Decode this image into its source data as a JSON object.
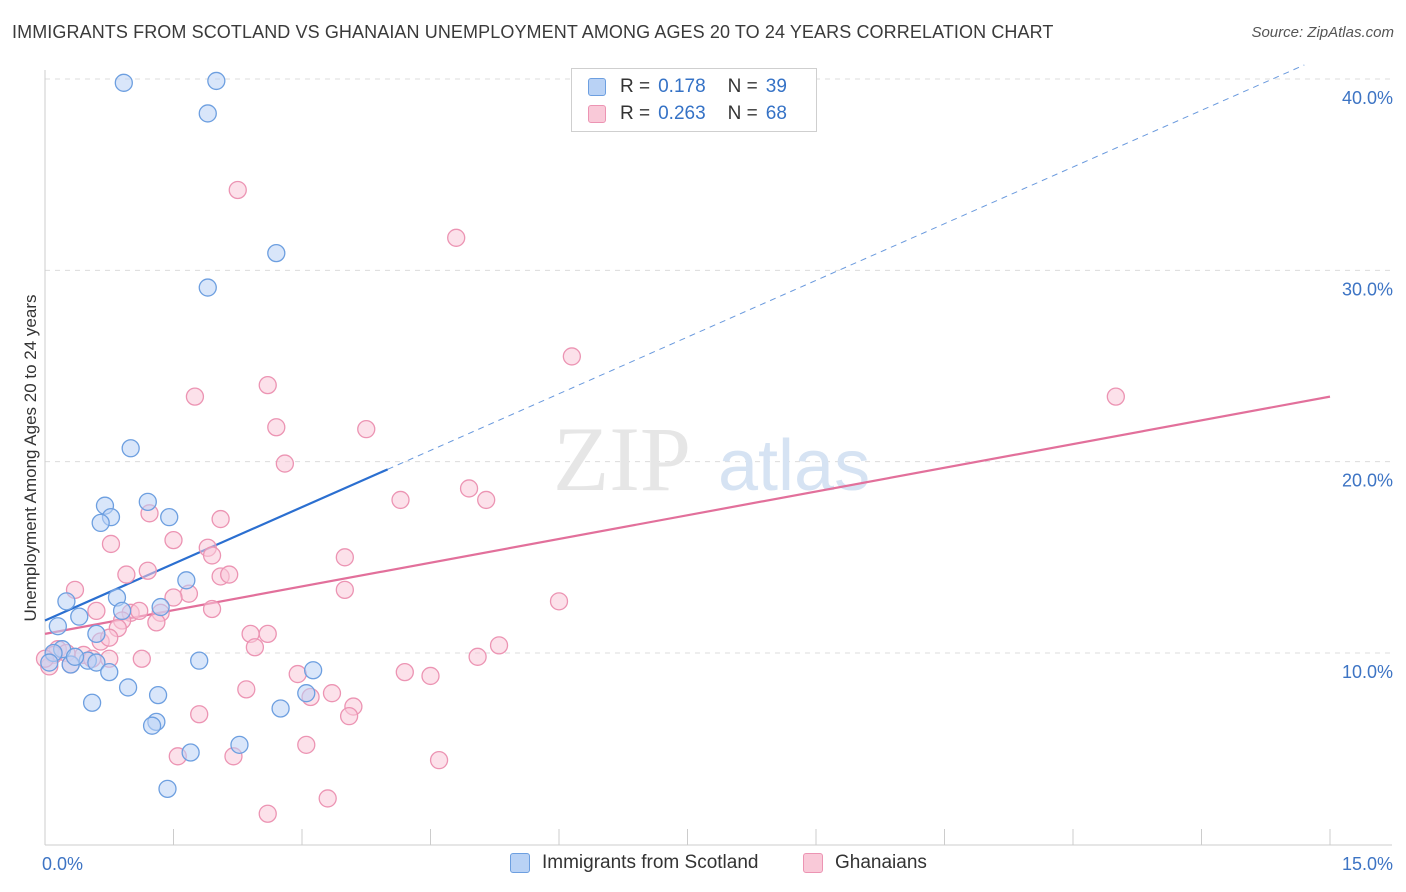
{
  "header": {
    "title": "IMMIGRANTS FROM SCOTLAND VS GHANAIAN UNEMPLOYMENT AMONG AGES 20 TO 24 YEARS CORRELATION CHART",
    "source": "Source: ZipAtlas.com"
  },
  "watermark": {
    "zip": "ZIP",
    "atlas": "atlas"
  },
  "legend": {
    "r_label": "R =",
    "n_label": "N =",
    "series": [
      {
        "r": "0.178",
        "n": "39"
      },
      {
        "r": "0.263",
        "n": "68"
      }
    ]
  },
  "colors": {
    "blue_fill": "#b9d2f5",
    "blue_stroke": "#6d9fe0",
    "blue_line": "#2b6fd0",
    "pink_fill": "#f9c9d8",
    "pink_stroke": "#ec94b3",
    "pink_line": "#e2709b",
    "tick_text": "#3d74c4",
    "grid": "#dcdcdc"
  },
  "chart_data": {
    "type": "scatter",
    "title": "IMMIGRANTS FROM SCOTLAND VS GHANAIAN UNEMPLOYMENT AMONG AGES 20 TO 24 YEARS CORRELATION CHART",
    "xlabel": "",
    "ylabel": "Unemployment Among Ages 20 to 24 years",
    "xlim": [
      0,
      15
    ],
    "ylim": [
      0,
      40
    ],
    "x_tick_labels": [
      {
        "value": 0,
        "label": "0.0%"
      },
      {
        "value": 15,
        "label": "15.0%"
      }
    ],
    "y_ticks": [
      {
        "value": 10,
        "label": "10.0%"
      },
      {
        "value": 20,
        "label": "20.0%"
      },
      {
        "value": 30,
        "label": "30.0%"
      },
      {
        "value": 40,
        "label": "40.0%"
      }
    ],
    "series": [
      {
        "name": "Immigrants from Scotland",
        "r": 0.178,
        "n": 39,
        "trend": {
          "x0": 0,
          "y0": 11.7,
          "x1": 4.0,
          "y1": 19.6,
          "dash_to_x": 14.7
        },
        "points": [
          [
            0.92,
            39.8
          ],
          [
            2.0,
            39.9
          ],
          [
            1.9,
            38.2
          ],
          [
            2.7,
            30.9
          ],
          [
            1.9,
            29.1
          ],
          [
            1.0,
            20.7
          ],
          [
            0.7,
            17.7
          ],
          [
            1.2,
            17.9
          ],
          [
            0.77,
            17.1
          ],
          [
            0.65,
            16.8
          ],
          [
            1.45,
            17.1
          ],
          [
            1.65,
            13.8
          ],
          [
            0.25,
            12.7
          ],
          [
            0.84,
            12.9
          ],
          [
            1.35,
            12.4
          ],
          [
            0.15,
            11.4
          ],
          [
            0.4,
            11.9
          ],
          [
            0.9,
            12.2
          ],
          [
            0.6,
            11.0
          ],
          [
            0.2,
            10.2
          ],
          [
            0.1,
            10.0
          ],
          [
            0.05,
            9.5
          ],
          [
            0.3,
            9.4
          ],
          [
            0.5,
            9.6
          ],
          [
            0.6,
            9.5
          ],
          [
            0.35,
            9.8
          ],
          [
            0.75,
            9.0
          ],
          [
            1.8,
            9.6
          ],
          [
            3.13,
            9.1
          ],
          [
            0.97,
            8.2
          ],
          [
            1.32,
            7.8
          ],
          [
            0.55,
            7.4
          ],
          [
            3.05,
            7.9
          ],
          [
            2.75,
            7.1
          ],
          [
            1.3,
            6.4
          ],
          [
            1.25,
            6.2
          ],
          [
            2.27,
            5.2
          ],
          [
            1.7,
            4.8
          ],
          [
            1.43,
            2.9
          ]
        ]
      },
      {
        "name": "Ghanaians",
        "r": 0.263,
        "n": 68,
        "trend": {
          "x0": 0,
          "y0": 11.0,
          "x1": 15.0,
          "y1": 23.4
        },
        "points": [
          [
            2.25,
            34.2
          ],
          [
            4.8,
            31.7
          ],
          [
            6.15,
            25.5
          ],
          [
            12.5,
            23.4
          ],
          [
            1.75,
            23.4
          ],
          [
            2.6,
            24.0
          ],
          [
            2.7,
            21.8
          ],
          [
            3.75,
            21.7
          ],
          [
            2.8,
            19.9
          ],
          [
            4.95,
            18.6
          ],
          [
            5.15,
            18.0
          ],
          [
            4.15,
            18.0
          ],
          [
            1.22,
            17.3
          ],
          [
            2.05,
            17.0
          ],
          [
            0.77,
            15.7
          ],
          [
            1.5,
            15.9
          ],
          [
            1.9,
            15.5
          ],
          [
            1.95,
            15.1
          ],
          [
            3.5,
            15.0
          ],
          [
            0.95,
            14.1
          ],
          [
            1.2,
            14.3
          ],
          [
            2.05,
            14.0
          ],
          [
            2.15,
            14.1
          ],
          [
            0.35,
            13.3
          ],
          [
            1.68,
            13.1
          ],
          [
            3.5,
            13.3
          ],
          [
            6.0,
            12.7
          ],
          [
            1.5,
            12.9
          ],
          [
            0.6,
            12.2
          ],
          [
            1.0,
            12.1
          ],
          [
            1.1,
            12.2
          ],
          [
            1.35,
            12.1
          ],
          [
            1.95,
            12.3
          ],
          [
            0.9,
            11.7
          ],
          [
            1.3,
            11.6
          ],
          [
            0.85,
            11.3
          ],
          [
            2.4,
            11.0
          ],
          [
            2.6,
            11.0
          ],
          [
            0.65,
            10.6
          ],
          [
            0.75,
            10.8
          ],
          [
            2.45,
            10.3
          ],
          [
            5.3,
            10.4
          ],
          [
            0.15,
            10.2
          ],
          [
            0.25,
            10.0
          ],
          [
            0.1,
            9.9
          ],
          [
            0.45,
            9.9
          ],
          [
            0.55,
            9.7
          ],
          [
            0.75,
            9.7
          ],
          [
            1.13,
            9.7
          ],
          [
            5.05,
            9.8
          ],
          [
            0.3,
            9.4
          ],
          [
            0.05,
            9.3
          ],
          [
            2.95,
            8.9
          ],
          [
            4.2,
            9.0
          ],
          [
            4.5,
            8.8
          ],
          [
            2.35,
            8.1
          ],
          [
            3.35,
            7.9
          ],
          [
            3.1,
            7.7
          ],
          [
            3.6,
            7.2
          ],
          [
            1.8,
            6.8
          ],
          [
            3.55,
            6.7
          ],
          [
            3.05,
            5.2
          ],
          [
            2.2,
            4.6
          ],
          [
            1.55,
            4.6
          ],
          [
            4.6,
            4.4
          ],
          [
            3.3,
            2.4
          ],
          [
            2.6,
            1.6
          ],
          [
            0.0,
            9.7
          ]
        ]
      }
    ]
  }
}
